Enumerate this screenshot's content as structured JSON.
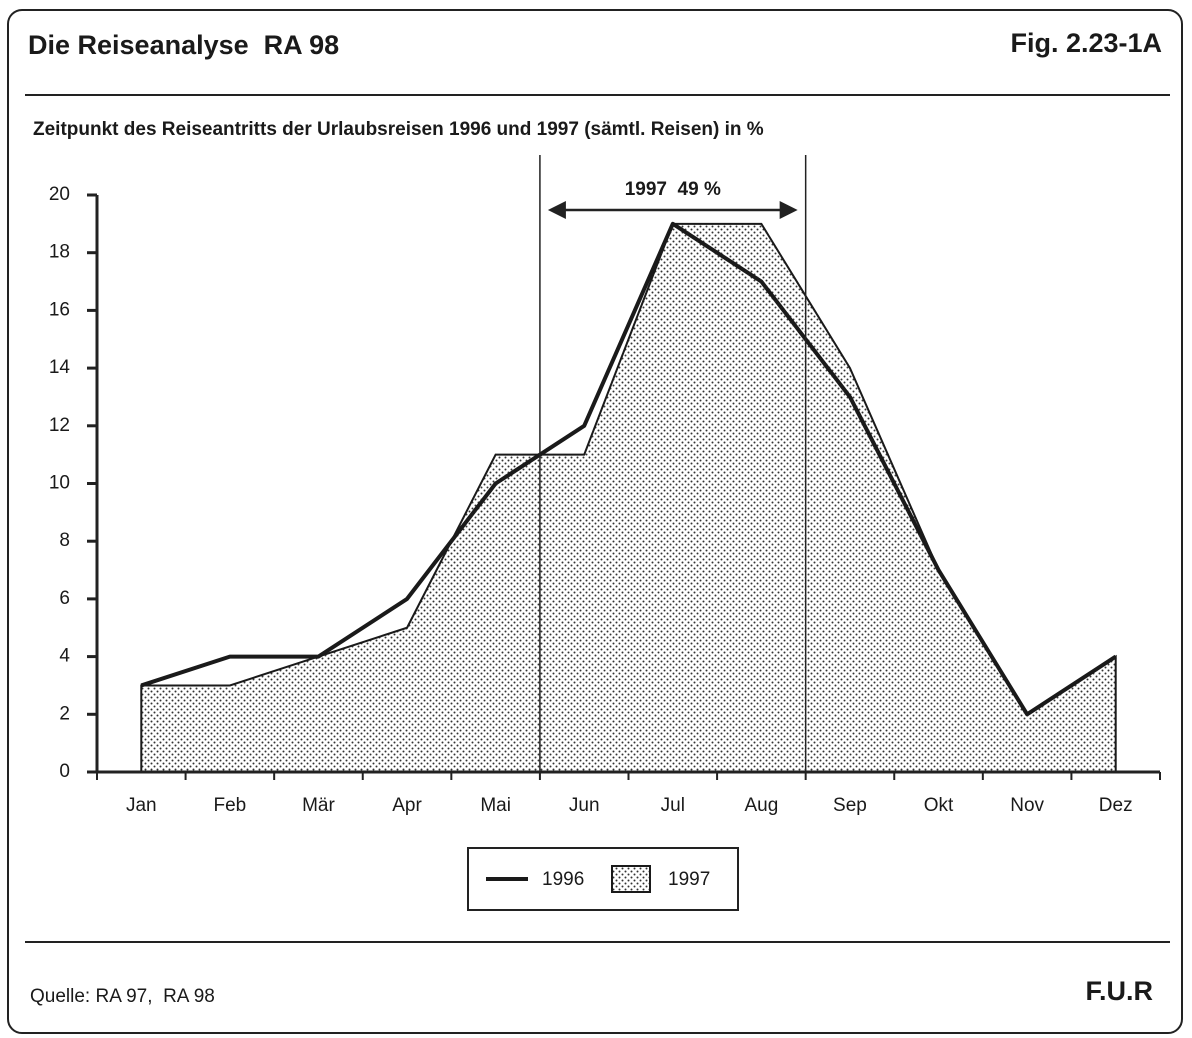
{
  "header": {
    "title": "Die Reiseanalyse  RA 98",
    "figure": "Fig. 2.23-1A"
  },
  "chart_data": {
    "type": "line",
    "title": "Zeitpunkt des Reiseantritts der Urlaubsreisen 1996 und 1997 (sämtl. Reisen) in %",
    "annotation": "1997  49 %",
    "categories": [
      "Jan",
      "Feb",
      "Mär",
      "Apr",
      "Mai",
      "Jun",
      "Jul",
      "Aug",
      "Sep",
      "Okt",
      "Nov",
      "Dez"
    ],
    "series": [
      {
        "name": "1996",
        "color": "#1a1a1a",
        "values": [
          3,
          4,
          4,
          6,
          10,
          12,
          19,
          17,
          13,
          7,
          2,
          4
        ]
      },
      {
        "name": "1997",
        "color": "#1a1a1a",
        "fill": "dotted",
        "values": [
          3,
          3,
          4,
          5,
          11,
          11,
          19,
          19,
          14,
          7,
          2,
          4
        ]
      }
    ],
    "ylim": [
      0,
      20
    ],
    "yticks": [
      0,
      2,
      4,
      6,
      8,
      10,
      12,
      14,
      16,
      18,
      20
    ],
    "grid": false
  },
  "footer": {
    "source": "Quelle: RA 97,  RA 98",
    "publisher": "F.U.R"
  }
}
